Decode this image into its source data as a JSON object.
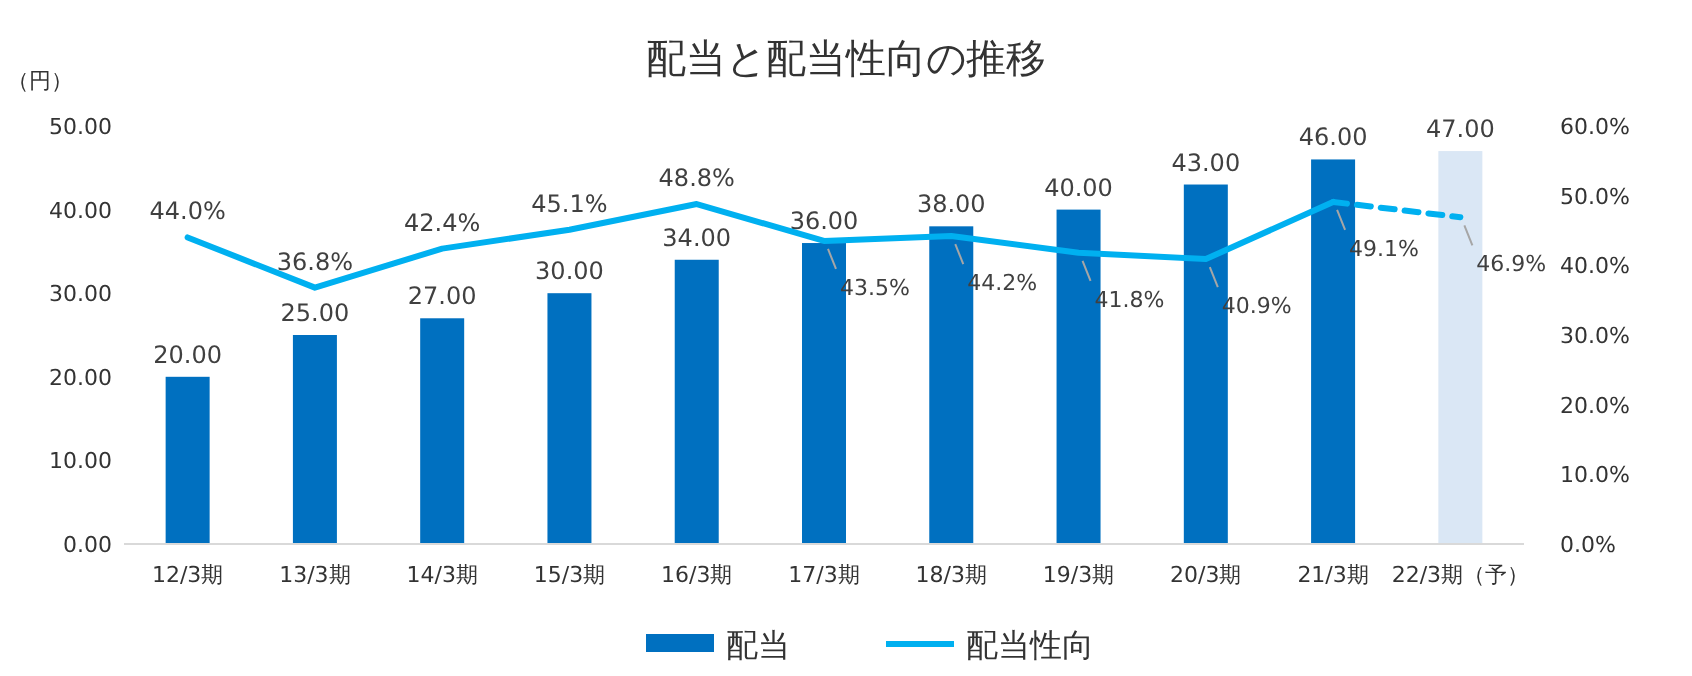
{
  "chart_data": {
    "type": "bar",
    "title": "配当と配当性向の推移",
    "ylabel": "（円）",
    "categories": [
      "12/3期",
      "13/3期",
      "14/3期",
      "15/3期",
      "16/3期",
      "17/3期",
      "18/3期",
      "19/3期",
      "20/3期",
      "21/3期",
      "22/3期（予）"
    ],
    "ylim": [
      0,
      50
    ],
    "yticks": [
      {
        "value": 0,
        "label": "0.00"
      },
      {
        "value": 10,
        "label": "10.00"
      },
      {
        "value": 20,
        "label": "20.00"
      },
      {
        "value": 30,
        "label": "30.00"
      },
      {
        "value": 40,
        "label": "40.00"
      },
      {
        "value": 50,
        "label": "50.00"
      }
    ],
    "y2lim": [
      0,
      60
    ],
    "y2ticks": [
      {
        "value": 0,
        "label": "0.0%"
      },
      {
        "value": 10,
        "label": "10.0%"
      },
      {
        "value": 20,
        "label": "20.0%"
      },
      {
        "value": 30,
        "label": "30.0%"
      },
      {
        "value": 40,
        "label": "40.0%"
      },
      {
        "value": 50,
        "label": "50.0%"
      },
      {
        "value": 60,
        "label": "60.0%"
      }
    ],
    "legend": "bottom",
    "grid": false,
    "series": [
      {
        "name": "配当",
        "color": "#0070c0",
        "colors": [
          "#0070c0",
          "#0070c0",
          "#0070c0",
          "#0070c0",
          "#0070c0",
          "#0070c0",
          "#0070c0",
          "#0070c0",
          "#0070c0",
          "#0070c0",
          "#dae7f5"
        ],
        "values": [
          20,
          25,
          27,
          30,
          34,
          36,
          38,
          40,
          43,
          46,
          47
        ],
        "value_labels": [
          "20.00",
          "25.00",
          "27.00",
          "30.00",
          "34.00",
          "36.00",
          "38.00",
          "40.00",
          "43.00",
          "46.00",
          "47.00"
        ]
      },
      {
        "name": "配当性向",
        "type": "line",
        "axis": "y2",
        "color": "#00b0f0",
        "line_style": "solid",
        "values": [
          44.0,
          36.8,
          42.4,
          45.1,
          48.8,
          43.5,
          44.2,
          41.8,
          40.9,
          49.1,
          null
        ],
        "value_labels": [
          "44.0%",
          "36.8%",
          "42.4%",
          "45.1%",
          "48.8%",
          "43.5%",
          "44.2%",
          "41.8%",
          "40.9%",
          "49.1%",
          null
        ]
      },
      {
        "type": "line",
        "axis": "y2",
        "color": "#00b0f0",
        "line_style": "dashed",
        "values": [
          null,
          null,
          null,
          null,
          null,
          null,
          null,
          null,
          null,
          49.1,
          46.9
        ],
        "value_labels": [
          null,
          null,
          null,
          null,
          null,
          null,
          null,
          null,
          null,
          null,
          "46.9%"
        ]
      }
    ]
  }
}
